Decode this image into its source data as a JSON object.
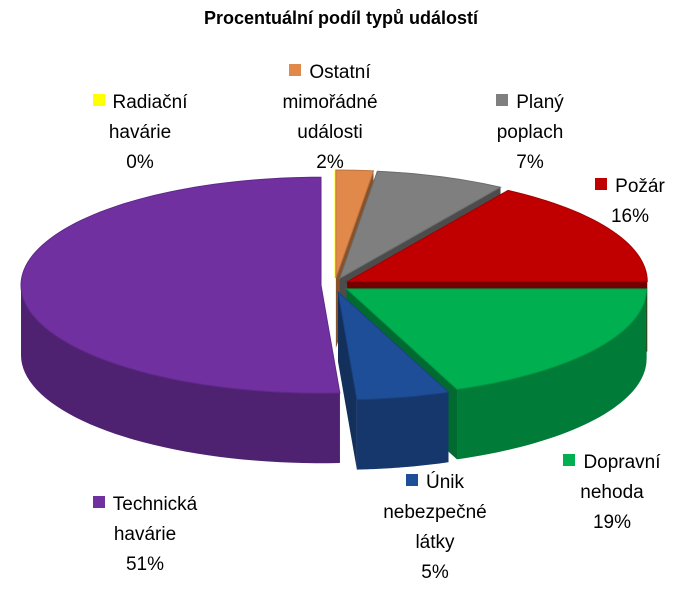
{
  "chart_data": {
    "type": "pie3d",
    "title": "Procentuální podíl typů událostí",
    "categories": [
      "Radiační havárie",
      "Ostatní mimořádné události",
      "Planý poplach",
      "Požár",
      "Dopravní nehoda",
      "Únik nebezpečné látky",
      "Technická havárie"
    ],
    "values": [
      0,
      2,
      7,
      16,
      19,
      5,
      51
    ],
    "value_labels": [
      "0%",
      "2%",
      "7%",
      "16%",
      "19%",
      "5%",
      "51%"
    ],
    "colors": [
      "#ffff00",
      "#e0894a",
      "#7f7f7f",
      "#c00000",
      "#00b050",
      "#1f4e99",
      "#7030a0"
    ]
  }
}
